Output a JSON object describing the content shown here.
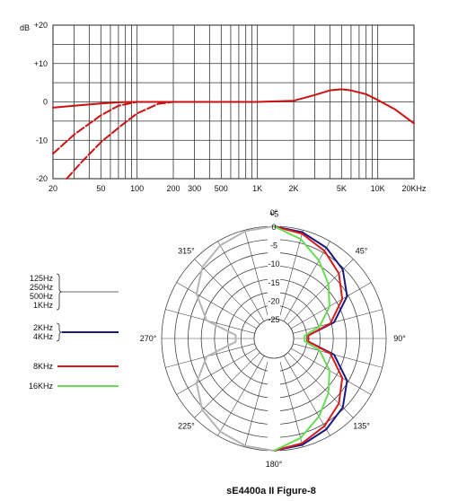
{
  "chart_data": [
    {
      "type": "line",
      "title": "",
      "xlabel": "",
      "ylabel": "",
      "y_unit_label": "dB",
      "x_scale": "log",
      "xlim": [
        20,
        20000
      ],
      "ylim": [
        -20,
        20
      ],
      "grid": true,
      "x_tick_labels": [
        {
          "value": 20,
          "label": "20"
        },
        {
          "value": 50,
          "label": "50"
        },
        {
          "value": 100,
          "label": "100"
        },
        {
          "value": 200,
          "label": "200"
        },
        {
          "value": 300,
          "label": "300"
        },
        {
          "value": 500,
          "label": "500"
        },
        {
          "value": 1000,
          "label": "1K"
        },
        {
          "value": 2000,
          "label": "2K"
        },
        {
          "value": 5000,
          "label": "5K"
        },
        {
          "value": 10000,
          "label": "10K"
        },
        {
          "value": 20000,
          "label": "20KHz"
        }
      ],
      "y_tick_labels": [
        {
          "value": 20,
          "label": "+20"
        },
        {
          "value": 10,
          "label": "+10"
        },
        {
          "value": 0,
          "label": "0"
        },
        {
          "value": -10,
          "label": "-10"
        },
        {
          "value": -20,
          "label": "-20"
        }
      ],
      "series": [
        {
          "style": "solid",
          "color": "#cc1111",
          "x": [
            20,
            30,
            50,
            70,
            100,
            150,
            200,
            300,
            500,
            1000,
            2000,
            3000,
            4000,
            5000,
            6000,
            8000,
            10000,
            14000,
            20000
          ],
          "y": [
            -1.5,
            -1.0,
            -0.4,
            -0.1,
            0,
            0,
            0,
            0,
            0,
            0,
            0.3,
            1.8,
            3.0,
            3.3,
            3.0,
            2.0,
            0.5,
            -2.0,
            -5.6
          ]
        },
        {
          "style": "dashed",
          "color": "#cc1111",
          "x": [
            20,
            30,
            50,
            70,
            100,
            150,
            200
          ],
          "y": [
            -13.5,
            -8.5,
            -3.5,
            -1.0,
            0,
            0,
            0
          ]
        },
        {
          "style": "dashed",
          "color": "#cc1111",
          "x": [
            26,
            35,
            50,
            75,
            100,
            150,
            200
          ],
          "y": [
            -20,
            -15.5,
            -10.5,
            -6.0,
            -3.0,
            -0.5,
            0
          ]
        }
      ]
    },
    {
      "type": "polar",
      "title": "sE4400a II Figure-8",
      "r_unit": "dB",
      "r_range": [
        -25,
        0
      ],
      "radial_tick_labels": [
        "+5",
        "0",
        "-5",
        "-10",
        "-15",
        "-20",
        "-25"
      ],
      "angle_labels": [
        {
          "angle": 0,
          "label": "0°"
        },
        {
          "angle": 45,
          "label": "45°"
        },
        {
          "angle": 90,
          "label": "90°"
        },
        {
          "angle": 135,
          "label": "135°"
        },
        {
          "angle": 180,
          "label": "180°"
        },
        {
          "angle": 225,
          "label": "225°"
        },
        {
          "angle": 270,
          "label": "270°"
        },
        {
          "angle": 315,
          "label": "315°"
        }
      ],
      "legend": [
        {
          "labels": [
            "125Hz",
            "250Hz",
            "500Hz",
            "1KHz"
          ],
          "color": "#b5b5b5"
        },
        {
          "labels": [
            "2KHz",
            "4KHz"
          ],
          "color": "#1a1a80"
        },
        {
          "labels": [
            "8KHz"
          ],
          "color": "#d41c1c"
        },
        {
          "labels": [
            "16KHz"
          ],
          "color": "#66dd55"
        }
      ],
      "series": [
        {
          "name": "125Hz, 250Hz, 500Hz, 1KHz",
          "color": "#b5b5b5",
          "side": "left",
          "angles": [
            0,
            15,
            30,
            45,
            60,
            75,
            85,
            95,
            105,
            120,
            135,
            150,
            165,
            180
          ],
          "db": [
            0,
            -0.3,
            -1.3,
            -3.0,
            -6.2,
            -11.5,
            -20,
            -20,
            -11.5,
            -6.2,
            -3.0,
            -1.3,
            -0.3,
            0
          ]
        },
        {
          "name": "2KHz, 4KHz",
          "color": "#1a1a80",
          "side": "right",
          "angles": [
            0,
            15,
            30,
            45,
            60,
            75,
            85,
            95,
            105,
            120,
            135,
            150,
            165,
            180
          ],
          "db": [
            0,
            -0.6,
            -2.0,
            -4.0,
            -7.5,
            -13.5,
            -21,
            -21,
            -13.5,
            -7.5,
            -4.0,
            -2.0,
            -0.6,
            0
          ]
        },
        {
          "name": "8KHz",
          "color": "#d41c1c",
          "side": "right",
          "angles": [
            0,
            15,
            30,
            45,
            60,
            75,
            85,
            95,
            105,
            120,
            135,
            150,
            165,
            180
          ],
          "db": [
            0,
            -1.0,
            -3.0,
            -5.5,
            -9.0,
            -14.5,
            -21,
            -21,
            -14.5,
            -9.0,
            -5.5,
            -3.0,
            -1.0,
            0
          ]
        },
        {
          "name": "16KHz",
          "color": "#66dd55",
          "side": "right",
          "angles": [
            0,
            15,
            30,
            45,
            60,
            75,
            85,
            95,
            105,
            120,
            135,
            150,
            165,
            180
          ],
          "db": [
            0,
            -2.5,
            -6.0,
            -9.5,
            -13.0,
            -17.5,
            -22,
            -22,
            -17.5,
            -13.0,
            -9.5,
            -6.0,
            -2.5,
            0
          ]
        }
      ]
    }
  ]
}
